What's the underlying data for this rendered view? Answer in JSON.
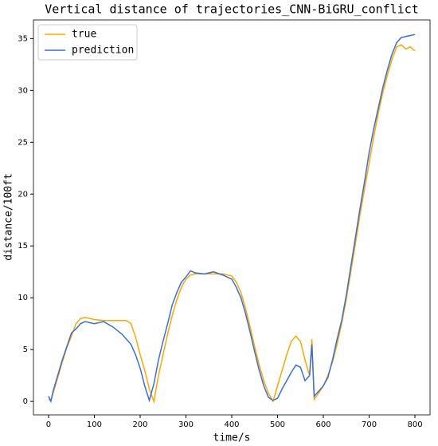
{
  "chart_data": {
    "type": "line",
    "title": "Vertical distance of trajectories_CNN-BiGRU_conflict",
    "x_label": "time/s",
    "y_label": "distance/100ft",
    "x": [
      0,
      5,
      10,
      20,
      30,
      40,
      50,
      60,
      70,
      80,
      90,
      100,
      120,
      140,
      160,
      170,
      180,
      190,
      200,
      210,
      220,
      230,
      240,
      250,
      260,
      270,
      280,
      290,
      300,
      310,
      320,
      340,
      360,
      380,
      400,
      410,
      420,
      430,
      440,
      450,
      460,
      470,
      480,
      490,
      500,
      510,
      520,
      530,
      540,
      550,
      560,
      570,
      575,
      580,
      590,
      600,
      610,
      620,
      630,
      640,
      650,
      660,
      670,
      680,
      690,
      700,
      710,
      720,
      730,
      740,
      750,
      760,
      770,
      780,
      790,
      800
    ],
    "series": [
      {
        "name": "true",
        "color": "#ffa500",
        "values": [
          0.2,
          0.1,
          0.8,
          2.3,
          3.8,
          5.2,
          6.3,
          7.5,
          8.0,
          8.1,
          8.0,
          7.9,
          7.8,
          7.8,
          7.8,
          7.8,
          7.5,
          6.2,
          4.5,
          3.0,
          1.2,
          0,
          2.5,
          4.5,
          6.5,
          8.3,
          9.8,
          11.0,
          11.8,
          12.2,
          12.3,
          12.3,
          12.3,
          12.3,
          12.1,
          11.5,
          10.5,
          9.0,
          7.2,
          5.3,
          3.5,
          2.0,
          0.8,
          0,
          1.5,
          3.0,
          4.5,
          5.8,
          6.3,
          5.8,
          4.0,
          2.5,
          6.0,
          0.2,
          0.8,
          1.5,
          2.5,
          3.8,
          5.5,
          7.5,
          9.8,
          12.5,
          15.2,
          18,
          20.5,
          23,
          25.5,
          27.8,
          29.8,
          31.5,
          33,
          34.2,
          34.4,
          34.0,
          34.2,
          33.8
        ]
      },
      {
        "name": "prediction",
        "color": "#3a6fd8",
        "values": [
          0.5,
          0,
          1.0,
          2.5,
          4.0,
          5.3,
          6.6,
          7.0,
          7.5,
          7.7,
          7.6,
          7.5,
          7.7,
          7.2,
          6.5,
          6.0,
          5.5,
          4.5,
          3.2,
          1.5,
          0.1,
          1.7,
          4.0,
          5.8,
          7.5,
          9.3,
          10.5,
          11.5,
          12.0,
          12.6,
          12.4,
          12.3,
          12.5,
          12.2,
          11.8,
          11.0,
          10.0,
          8.5,
          6.7,
          4.8,
          3.0,
          1.5,
          0.4,
          0.1,
          0.3,
          1.2,
          2.0,
          2.8,
          3.5,
          3.3,
          2.0,
          2.5,
          5.5,
          0.5,
          1.0,
          1.5,
          2.3,
          4.0,
          6.0,
          7.8,
          10.2,
          13.0,
          15.8,
          18.6,
          21.2,
          24,
          26.3,
          28.3,
          30.3,
          32,
          33.5,
          34.6,
          35.1,
          35.2,
          35.3,
          35.4
        ]
      }
    ],
    "xlim": [
      -33,
      833
    ],
    "xticks": [
      0,
      100,
      200,
      300,
      400,
      500,
      600,
      700,
      800
    ],
    "ylim": [
      -1.3,
      36.8
    ],
    "yticks": [
      0,
      5,
      10,
      15,
      20,
      25,
      30,
      35
    ],
    "legend": "upper left"
  }
}
